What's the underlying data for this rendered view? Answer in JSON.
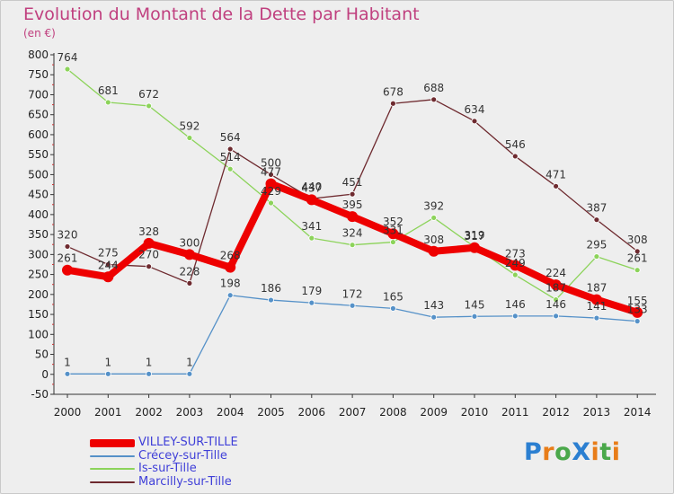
{
  "title": "Evolution du Montant de la Dette par Habitant",
  "subtitle": "(en €)",
  "logo": {
    "text": "ProXiti",
    "letters": [
      "P",
      "r",
      "o",
      "X",
      "i",
      "t",
      "i"
    ],
    "colors": [
      "#2b7fd1",
      "#e87d19",
      "#4aa84a",
      "#2b7fd1",
      "#e87d19",
      "#4aa84a",
      "#e87d19"
    ]
  },
  "chart_data": {
    "type": "line",
    "x": [
      "2000",
      "2001",
      "2002",
      "2003",
      "2004",
      "2005",
      "2006",
      "2007",
      "2008",
      "2009",
      "2010",
      "2011",
      "2012",
      "2013",
      "2014"
    ],
    "ylim": [
      -50,
      800
    ],
    "yticks": [
      "800",
      "750",
      "700",
      "650",
      "600",
      "550",
      "500",
      "450",
      "400",
      "350",
      "300",
      "250",
      "200",
      "150",
      "100",
      "50",
      "0",
      "-50"
    ],
    "grid": false,
    "legend_position": "bottom-left",
    "series": [
      {
        "name": "VILLEY-SUR-TILLE",
        "color": "#ee0000",
        "values": [
          261,
          244,
          328,
          300,
          268,
          477,
          437,
          395,
          352,
          308,
          317,
          273,
          224,
          187,
          155
        ]
      },
      {
        "name": "Crécey-sur-Tille",
        "color": "#5591c8",
        "values": [
          1,
          1,
          1,
          1,
          198,
          186,
          179,
          172,
          165,
          143,
          145,
          146,
          146,
          141,
          133
        ]
      },
      {
        "name": "Is-sur-Tille",
        "color": "#8cd35a",
        "values": [
          764,
          681,
          672,
          592,
          514,
          429,
          341,
          324,
          331,
          392,
          319,
          249,
          187,
          295,
          261
        ]
      },
      {
        "name": "Marcilly-sur-Tille",
        "color": "#6e2a2f",
        "values": [
          320,
          275,
          270,
          228,
          564,
          500,
          440,
          451,
          678,
          688,
          634,
          546,
          471,
          387,
          308
        ]
      }
    ]
  }
}
